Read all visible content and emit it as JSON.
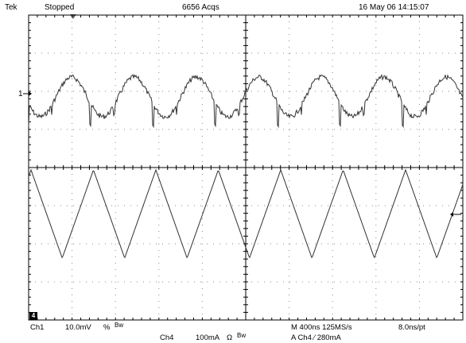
{
  "header": {
    "brand": "Tek",
    "run_state": "Stopped",
    "acquisitions": "6656 Acqs",
    "timestamp": "16 May 06 14:15:07"
  },
  "markers": {
    "ch1_ground": "1",
    "ch4_badge": "4"
  },
  "footer": {
    "ch1_label": "Ch1",
    "ch1_scale": "10.0mV",
    "ch1_coupling_symbol": "%",
    "ch1_bw": "Bw",
    "ch4_label": "Ch4",
    "ch4_scale": "100mA",
    "ch4_coupling_symbol": "Ω",
    "ch4_bw": "Bw",
    "timebase": "M 400ns 125MS/s",
    "record_interval": "8.0ns/pt",
    "trigger": "A  Ch4  ⁄  280mA"
  },
  "colors": {
    "grid": "#000000",
    "trace": "#333333",
    "background": "#ffffff"
  }
}
